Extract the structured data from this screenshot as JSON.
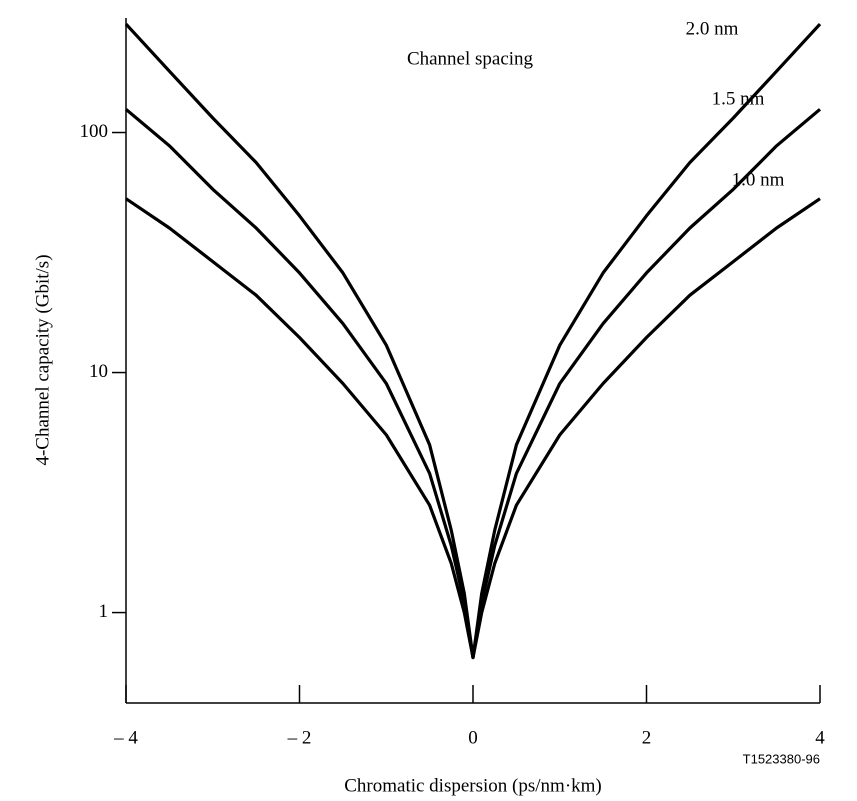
{
  "chart_data": {
    "type": "line",
    "x": [
      -4,
      -3.5,
      -3,
      -2.5,
      -2,
      -1.5,
      -1,
      -0.5,
      -0.25,
      -0.1,
      0,
      0.1,
      0.25,
      0.5,
      1,
      1.5,
      2,
      2.5,
      3,
      3.5,
      4
    ],
    "series": [
      {
        "name": "2.0 nm",
        "color": "#000000",
        "values": [
          283,
          180,
          115,
          75,
          45,
          26,
          13,
          5,
          2.2,
          1.2,
          0.65,
          1.2,
          2.2,
          5,
          13,
          26,
          45,
          75,
          115,
          180,
          283
        ]
      },
      {
        "name": "1.5 nm",
        "color": "#000000",
        "values": [
          125,
          88,
          58,
          40,
          26,
          16,
          9,
          3.8,
          1.9,
          1.1,
          0.65,
          1.1,
          1.9,
          3.8,
          9,
          16,
          26,
          40,
          58,
          88,
          125
        ]
      },
      {
        "name": "1.0 nm",
        "color": "#000000",
        "values": [
          53,
          40,
          29,
          21,
          14,
          9,
          5.5,
          2.8,
          1.6,
          1.0,
          0.65,
          1.0,
          1.6,
          2.8,
          5.5,
          9,
          14,
          21,
          29,
          40,
          53
        ]
      }
    ],
    "annotations": [
      "Channel spacing",
      "T1523380-96"
    ],
    "xlabel": "Chromatic dispersion  (ps/nm·km)",
    "ylabel": "4-Channel capacity (Gbit/s)",
    "xlim": [
      -4,
      4
    ],
    "xticks": [
      {
        "value": -4,
        "label": "– 4"
      },
      {
        "value": -2,
        "label": "– 2"
      },
      0,
      2,
      4
    ],
    "ylim": [
      0.42,
      300
    ],
    "yticks": [
      1,
      10,
      100
    ],
    "log_y": true
  }
}
